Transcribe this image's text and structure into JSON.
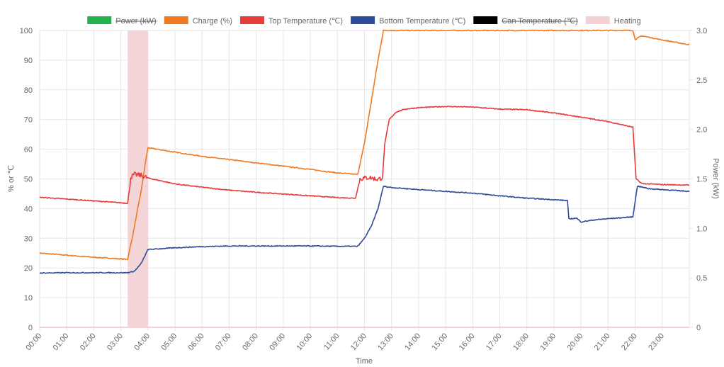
{
  "chart_data": {
    "type": "line",
    "xlabel": "Time",
    "ylabel_left": "% or ℃",
    "ylabel_right": "Power (kW)",
    "x_ticks": [
      "00:00",
      "01:00",
      "02:00",
      "03:00",
      "04:00",
      "05:00",
      "06:00",
      "07:00",
      "08:00",
      "09:00",
      "10:00",
      "11:00",
      "12:00",
      "13:00",
      "14:00",
      "15:00",
      "16:00",
      "17:00",
      "18:00",
      "19:00",
      "20:00",
      "21:00",
      "22:00",
      "23:00"
    ],
    "x_range_hours": [
      0,
      24
    ],
    "y_left_range": [
      0,
      100
    ],
    "y_left_ticks": [
      "0",
      "10",
      "20",
      "30",
      "40",
      "50",
      "60",
      "70",
      "80",
      "90",
      "100"
    ],
    "y_right_range": [
      0,
      3.0
    ],
    "y_right_ticks": [
      "0",
      "0.5",
      "1.0",
      "1.5",
      "2.0",
      "2.5",
      "3.0"
    ],
    "grid": true,
    "legend_position": "top",
    "legend": [
      {
        "label": "Power (kW)",
        "color": "#22b14c",
        "hidden": true
      },
      {
        "label": "Charge (%)",
        "color": "#f07a20",
        "hidden": false
      },
      {
        "label": "Top Temperature (℃)",
        "color": "#e83c3c",
        "hidden": false
      },
      {
        "label": "Bottom Temperature (℃)",
        "color": "#2e4a9a",
        "hidden": false
      },
      {
        "label": "Can Temperature (℃)",
        "color": "#000000",
        "hidden": true
      },
      {
        "label": "Heating",
        "color": "#f3d0d3",
        "hidden": false
      }
    ],
    "heating_periods": [
      {
        "start": "03:15",
        "end": "04:00"
      }
    ],
    "series": [
      {
        "name": "Charge (%)",
        "color": "#f07a20",
        "points": [
          [
            "00:00",
            25.0
          ],
          [
            "01:00",
            24.3
          ],
          [
            "02:00",
            23.6
          ],
          [
            "03:15",
            22.9
          ],
          [
            "03:25",
            30
          ],
          [
            "03:35",
            38
          ],
          [
            "03:45",
            46
          ],
          [
            "03:55",
            56
          ],
          [
            "04:00",
            60.5
          ],
          [
            "05:00",
            59.0
          ],
          [
            "06:00",
            57.6
          ],
          [
            "07:00",
            56.5
          ],
          [
            "08:00",
            55.4
          ],
          [
            "09:00",
            54.3
          ],
          [
            "10:00",
            53.2
          ],
          [
            "11:00",
            52.0
          ],
          [
            "11:45",
            51.5
          ],
          [
            "12:00",
            62
          ],
          [
            "12:15",
            76
          ],
          [
            "12:30",
            90
          ],
          [
            "12:42",
            100
          ],
          [
            "21:55",
            100
          ],
          [
            "22:00",
            97
          ],
          [
            "22:15",
            98.2
          ],
          [
            "23:00",
            96.8
          ],
          [
            "24:00",
            95.2
          ]
        ]
      },
      {
        "name": "Top Temperature (℃)",
        "color": "#e83c3c",
        "points": [
          [
            "00:00",
            43.8
          ],
          [
            "01:00",
            43.2
          ],
          [
            "02:00",
            42.6
          ],
          [
            "03:15",
            41.8
          ],
          [
            "03:22",
            50.5
          ],
          [
            "03:30",
            51.5
          ],
          [
            "03:45",
            51.2
          ],
          [
            "04:00",
            50.3
          ],
          [
            "05:00",
            48.3
          ],
          [
            "06:00",
            47.2
          ],
          [
            "07:00",
            46.2
          ],
          [
            "08:00",
            45.5
          ],
          [
            "09:00",
            44.9
          ],
          [
            "10:00",
            44.3
          ],
          [
            "11:00",
            43.7
          ],
          [
            "11:40",
            43.5
          ],
          [
            "11:50",
            50
          ],
          [
            "12:10",
            50.5
          ],
          [
            "12:30",
            49.8
          ],
          [
            "12:40",
            50.5
          ],
          [
            "12:45",
            62
          ],
          [
            "12:55",
            70
          ],
          [
            "13:10",
            72.5
          ],
          [
            "13:30",
            73.5
          ],
          [
            "14:00",
            74.0
          ],
          [
            "15:00",
            74.4
          ],
          [
            "16:00",
            74.2
          ],
          [
            "17:00",
            73.5
          ],
          [
            "18:00",
            73.3
          ],
          [
            "19:00",
            72.2
          ],
          [
            "20:00",
            70.8
          ],
          [
            "21:00",
            69.3
          ],
          [
            "21:55",
            67.4
          ],
          [
            "22:02",
            50
          ],
          [
            "22:15",
            48.4
          ],
          [
            "23:00",
            48.1
          ],
          [
            "24:00",
            47.9
          ]
        ]
      },
      {
        "name": "Bottom Temperature (℃)",
        "color": "#2e4a9a",
        "points": [
          [
            "00:00",
            18.3
          ],
          [
            "01:00",
            18.4
          ],
          [
            "02:00",
            18.4
          ],
          [
            "03:15",
            18.4
          ],
          [
            "03:30",
            18.9
          ],
          [
            "03:45",
            21.5
          ],
          [
            "04:00",
            26.2
          ],
          [
            "05:00",
            26.8
          ],
          [
            "06:00",
            27.2
          ],
          [
            "07:00",
            27.4
          ],
          [
            "08:00",
            27.4
          ],
          [
            "09:00",
            27.4
          ],
          [
            "10:00",
            27.4
          ],
          [
            "11:00",
            27.3
          ],
          [
            "11:45",
            27.3
          ],
          [
            "12:00",
            30
          ],
          [
            "12:15",
            34
          ],
          [
            "12:30",
            40
          ],
          [
            "12:42",
            47.5
          ],
          [
            "13:00",
            47.1
          ],
          [
            "14:00",
            46.4
          ],
          [
            "15:00",
            45.8
          ],
          [
            "16:00",
            45.2
          ],
          [
            "17:00",
            44.3
          ],
          [
            "18:00",
            43.5
          ],
          [
            "19:00",
            43.0
          ],
          [
            "19:30",
            42.7
          ],
          [
            "19:33",
            36.5
          ],
          [
            "19:50",
            36.8
          ],
          [
            "20:00",
            35.5
          ],
          [
            "20:30",
            36.2
          ],
          [
            "21:00",
            36.6
          ],
          [
            "21:55",
            37.2
          ],
          [
            "22:05",
            47.6
          ],
          [
            "22:30",
            46.7
          ],
          [
            "23:00",
            46.4
          ],
          [
            "24:00",
            45.8
          ]
        ]
      }
    ]
  }
}
